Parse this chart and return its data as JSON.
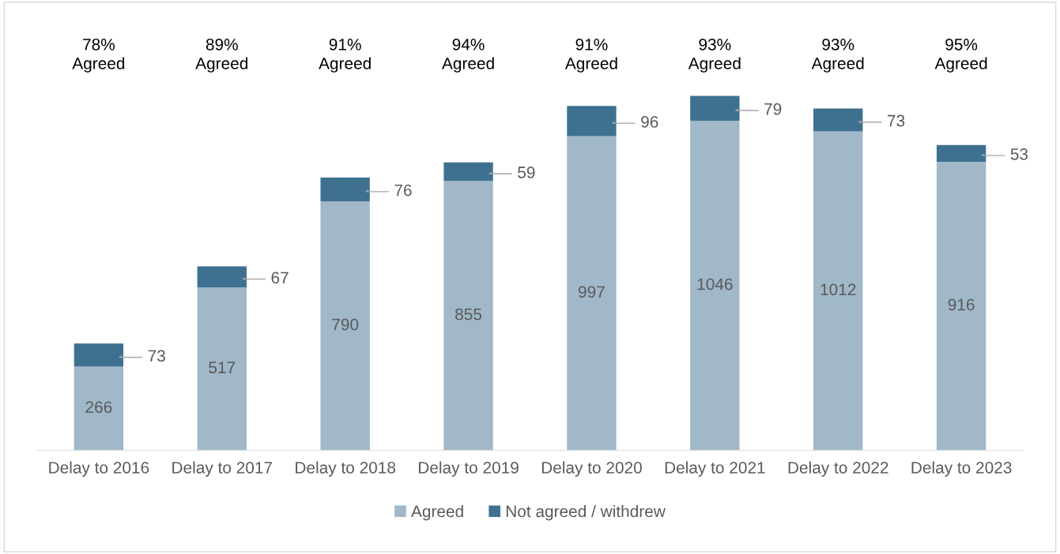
{
  "chart_data": {
    "type": "bar",
    "stacked": true,
    "data_labels": true,
    "legend": "bottom",
    "grid": false,
    "categories": [
      "Delay to 2016",
      "Delay to 2017",
      "Delay to 2018",
      "Delay to 2019",
      "Delay to 2020",
      "Delay to 2021",
      "Delay to 2022",
      "Delay to 2023"
    ],
    "series": [
      {
        "name": "Agreed",
        "color": "#a0b8c8",
        "values": [
          266,
          517,
          790,
          855,
          997,
          1046,
          1012,
          916
        ]
      },
      {
        "name": "Not agreed / withdrew",
        "color": "#3e7090",
        "values": [
          73,
          67,
          76,
          59,
          96,
          79,
          73,
          53
        ]
      }
    ],
    "annotations": [
      "78%\nAgreed",
      "89%\nAgreed",
      "91%\nAgreed",
      "94%\nAgreed",
      "91%\nAgreed",
      "93%\nAgreed",
      "93%\nAgreed",
      "95%\nAgreed"
    ]
  }
}
